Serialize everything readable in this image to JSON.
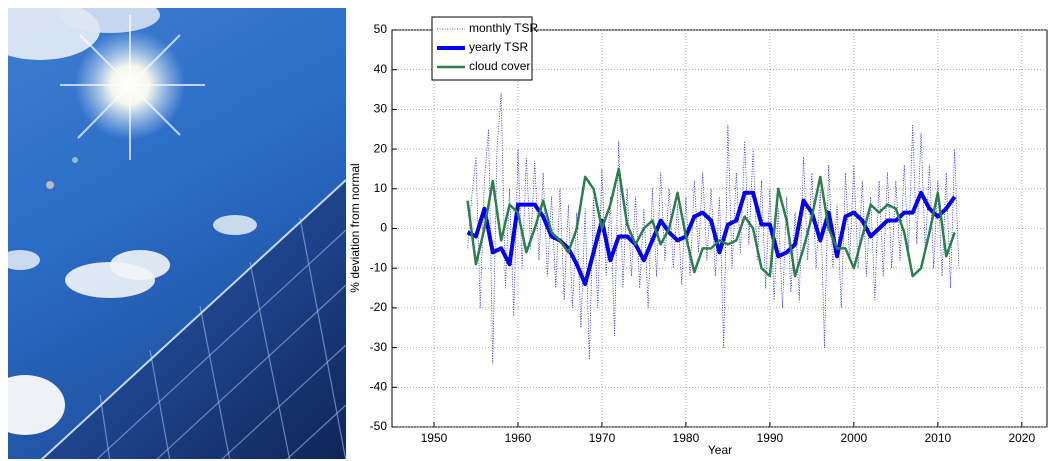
{
  "chart_data": {
    "type": "line",
    "x_label": "Year",
    "y_label": "% deviation from normal",
    "xlim": [
      1945,
      2023
    ],
    "xticks": [
      1950,
      1960,
      1970,
      1980,
      1990,
      2000,
      2010,
      2020
    ],
    "ylim": [
      -50,
      50
    ],
    "yticks": [
      -50,
      -40,
      -30,
      -20,
      -10,
      0,
      10,
      20,
      30,
      40,
      50
    ],
    "grid": true,
    "legend": "upper left",
    "series": [
      {
        "name": "monthly TSR",
        "color": "#2020e0",
        "style": "dotted",
        "x": [
          1954,
          1954.5,
          1955,
          1955.5,
          1956,
          1956.5,
          1957,
          1957.5,
          1958,
          1958.5,
          1959,
          1959.5,
          1960,
          1960.5,
          1961,
          1961.5,
          1962,
          1962.5,
          1963,
          1963.5,
          1964,
          1964.5,
          1965,
          1965.5,
          1966,
          1966.5,
          1967,
          1967.5,
          1968,
          1968.5,
          1969,
          1969.5,
          1970,
          1970.5,
          1971,
          1971.5,
          1972,
          1972.5,
          1973,
          1973.5,
          1974,
          1974.5,
          1975,
          1975.5,
          1976,
          1976.5,
          1977,
          1977.5,
          1978,
          1978.5,
          1979,
          1979.5,
          1980,
          1980.5,
          1981,
          1981.5,
          1982,
          1982.5,
          1983,
          1983.5,
          1984,
          1984.5,
          1985,
          1985.5,
          1986,
          1986.5,
          1987,
          1987.5,
          1988,
          1988.5,
          1989,
          1989.5,
          1990,
          1990.5,
          1991,
          1991.5,
          1992,
          1992.5,
          1993,
          1993.5,
          1994,
          1994.5,
          1995,
          1995.5,
          1996,
          1996.5,
          1997,
          1997.5,
          1998,
          1998.5,
          1999,
          1999.5,
          2000,
          2000.5,
          2001,
          2001.5,
          2002,
          2002.5,
          2003,
          2003.5,
          2004,
          2004.5,
          2005,
          2005.5,
          2006,
          2006.5,
          2007,
          2007.5,
          2008,
          2008.5,
          2009,
          2009.5,
          2010,
          2010.5,
          2011,
          2011.5,
          2012,
          2012.5
        ],
        "values": [
          -5,
          8,
          18,
          -20,
          12,
          25,
          -34,
          20,
          34,
          -15,
          10,
          -22,
          20,
          -10,
          18,
          -5,
          17,
          -8,
          14,
          -12,
          8,
          -15,
          10,
          -18,
          6,
          -20,
          4,
          -25,
          5,
          -33,
          8,
          -20,
          15,
          -12,
          8,
          -27,
          22,
          -15,
          10,
          -12,
          8,
          -15,
          5,
          -20,
          10,
          -12,
          14,
          -8,
          10,
          -10,
          6,
          -14,
          8,
          -12,
          12,
          -6,
          14,
          -8,
          10,
          -12,
          8,
          -30,
          26,
          -10,
          14,
          -6,
          22,
          -4,
          20,
          -8,
          12,
          -15,
          10,
          -18,
          5,
          -20,
          8,
          -16,
          4,
          -18,
          18,
          -8,
          14,
          -10,
          10,
          -30,
          16,
          -10,
          6,
          -20,
          14,
          -8,
          16,
          -10,
          12,
          -12,
          8,
          -18,
          12,
          -12,
          14,
          -10,
          12,
          -8,
          16,
          -6,
          26,
          -4,
          24,
          -6,
          16,
          -10,
          12,
          -12,
          14,
          -15,
          20,
          -10
        ]
      },
      {
        "name": "yearly TSR",
        "color": "#0000ee",
        "style": "thick",
        "x": [
          1954,
          1955,
          1956,
          1957,
          1958,
          1959,
          1960,
          1961,
          1962,
          1963,
          1964,
          1965,
          1966,
          1967,
          1968,
          1969,
          1970,
          1971,
          1972,
          1973,
          1974,
          1975,
          1976,
          1977,
          1978,
          1979,
          1980,
          1981,
          1982,
          1983,
          1984,
          1985,
          1986,
          1987,
          1988,
          1989,
          1990,
          1991,
          1992,
          1993,
          1994,
          1995,
          1996,
          1997,
          1998,
          1999,
          2000,
          2001,
          2002,
          2003,
          2004,
          2005,
          2006,
          2007,
          2008,
          2009,
          2010,
          2011,
          2012
        ],
        "values": [
          -1,
          -2,
          5,
          -6,
          -5,
          -9,
          6,
          6,
          6,
          3,
          -2,
          -3,
          -5,
          -9,
          -14,
          -6,
          2,
          -8,
          -2,
          -2,
          -4,
          -8,
          -3,
          2,
          -1,
          -3,
          -2,
          3,
          4,
          2,
          -6,
          1,
          2,
          9,
          9,
          1,
          1,
          -7,
          -6,
          -4,
          7,
          4,
          -3,
          4,
          -7,
          3,
          4,
          2,
          -2,
          0,
          2,
          2,
          4,
          4,
          9,
          5,
          3,
          5,
          8
        ]
      },
      {
        "name": "cloud cover",
        "color": "#2e7d4f",
        "style": "medium",
        "x": [
          1954,
          1955,
          1956,
          1957,
          1958,
          1959,
          1960,
          1961,
          1962,
          1963,
          1964,
          1965,
          1966,
          1967,
          1968,
          1969,
          1970,
          1971,
          1972,
          1973,
          1974,
          1975,
          1976,
          1977,
          1978,
          1979,
          1980,
          1981,
          1982,
          1983,
          1984,
          1985,
          1986,
          1987,
          1988,
          1989,
          1990,
          1991,
          1992,
          1993,
          1994,
          1995,
          1996,
          1997,
          1998,
          1999,
          2000,
          2001,
          2002,
          2003,
          2004,
          2005,
          2006,
          2007,
          2008,
          2009,
          2010,
          2011,
          2012
        ],
        "values": [
          7,
          -9,
          0,
          12,
          -3,
          6,
          4,
          -6,
          0,
          7,
          -1,
          -3,
          -6,
          0,
          13,
          10,
          0,
          6,
          15,
          1,
          -4,
          0,
          2,
          -4,
          0,
          9,
          -2,
          -11,
          -5,
          -5,
          -3,
          -4,
          -3,
          3,
          0,
          -10,
          -12,
          10,
          2,
          -12,
          -5,
          3,
          13,
          0,
          -5,
          -5,
          -10,
          -2,
          6,
          4,
          6,
          5,
          -1,
          -12,
          -10,
          -1,
          9,
          -7,
          -1
        ]
      }
    ]
  }
}
